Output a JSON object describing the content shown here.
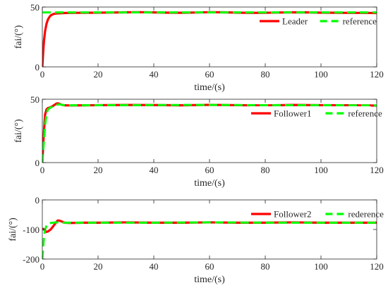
{
  "chart_data": [
    {
      "type": "line",
      "xlabel": "time/(s)",
      "ylabel": "fai/(°)",
      "xlim": [
        0,
        120
      ],
      "ylim": [
        0,
        50
      ],
      "xticks": [
        "0",
        "20",
        "40",
        "60",
        "80",
        "100",
        "120"
      ],
      "yticks": [
        "0",
        "50"
      ],
      "legend": "top-right",
      "grid": false,
      "series": [
        {
          "name": "Leader",
          "color": "#ff0000",
          "style": "solid",
          "x": [
            0,
            0.3,
            0.6,
            1,
            1.5,
            2,
            2.5,
            3,
            4,
            5,
            6,
            8,
            10,
            15,
            20,
            25,
            30,
            35,
            40,
            45,
            50,
            55,
            60,
            65,
            70,
            75,
            80,
            85,
            90,
            95,
            100,
            105,
            110,
            115,
            120
          ],
          "y": [
            0,
            12,
            22,
            30,
            36,
            39.5,
            41.5,
            43,
            44.2,
            44.6,
            44.8,
            45,
            45.1,
            45.2,
            45.3,
            45.4,
            45.6,
            45.7,
            45.5,
            45.3,
            45.2,
            45.4,
            45.7,
            45.6,
            45.3,
            45.1,
            45.2,
            45.4,
            45.6,
            45.5,
            45.3,
            45.2,
            45.1,
            45.1,
            45
          ]
        },
        {
          "name": "reference",
          "color": "#00ff00",
          "style": "dashed",
          "x": [
            0,
            120
          ],
          "y": [
            45.5,
            45.5
          ]
        }
      ]
    },
    {
      "type": "line",
      "xlabel": "time/(s)",
      "ylabel": "fai/(°)",
      "xlim": [
        0,
        120
      ],
      "ylim": [
        0,
        50
      ],
      "xticks": [
        "0",
        "20",
        "40",
        "60",
        "80",
        "100",
        "120"
      ],
      "yticks": [
        "0",
        "50"
      ],
      "legend": "top-right",
      "grid": false,
      "series": [
        {
          "name": "Follower1",
          "color": "#ff0000",
          "style": "solid",
          "x": [
            0,
            0.5,
            1,
            1.5,
            2,
            2.5,
            3,
            4,
            5,
            5.5,
            6,
            7,
            8,
            10,
            15,
            20,
            30,
            40,
            50,
            60,
            70,
            80,
            90,
            100,
            110,
            120
          ],
          "y": [
            0,
            22,
            38,
            42,
            43,
            43.3,
            43.8,
            45,
            46.5,
            46.8,
            46.5,
            45.6,
            45.2,
            45.1,
            45.2,
            45.3,
            45.5,
            45.4,
            45.2,
            45.6,
            45.3,
            45.1,
            45.5,
            45.3,
            45.2,
            45
          ]
        },
        {
          "name": "reference",
          "color": "#00ff00",
          "style": "dashed",
          "x": [
            0,
            0.5,
            1,
            1.5,
            2,
            3,
            4,
            5,
            6,
            7,
            8,
            10,
            20,
            40,
            60,
            80,
            100,
            120
          ],
          "y": [
            0,
            15,
            30,
            38,
            42,
            43.5,
            44.5,
            45.5,
            46,
            45.6,
            45.3,
            45.2,
            45.3,
            45.4,
            45.5,
            45.3,
            45.3,
            45.1
          ]
        }
      ]
    },
    {
      "type": "line",
      "xlabel": "time/(s)",
      "ylabel": "fai/(°)",
      "xlim": [
        0,
        120
      ],
      "ylim": [
        -200,
        0
      ],
      "xticks": [
        "0",
        "20",
        "40",
        "60",
        "80",
        "100",
        "120"
      ],
      "yticks": [
        "-200",
        "-100",
        "0"
      ],
      "legend": "top-right",
      "grid": false,
      "series": [
        {
          "name": "Follower2",
          "color": "#ff0000",
          "style": "solid",
          "x": [
            0,
            0.3,
            0.6,
            1,
            1.5,
            2,
            3,
            4,
            5,
            5.5,
            6,
            7,
            8,
            10,
            15,
            20,
            30,
            40,
            50,
            60,
            70,
            80,
            90,
            100,
            110,
            120
          ],
          "y": [
            -100,
            -98,
            -100,
            -105,
            -108,
            -107,
            -100,
            -88,
            -75,
            -70,
            -70,
            -73,
            -77,
            -78,
            -77,
            -77,
            -76,
            -77,
            -77,
            -76,
            -77,
            -77,
            -76,
            -77,
            -77,
            -77
          ]
        },
        {
          "name": "rederence",
          "color": "#00ff00",
          "style": "dashed",
          "x": [
            0,
            0.3,
            0.6,
            1,
            1.5,
            2,
            3,
            5,
            8,
            10,
            20,
            40,
            60,
            80,
            100,
            120
          ],
          "y": [
            -200,
            -160,
            -125,
            -100,
            -88,
            -82,
            -78,
            -76,
            -77,
            -77,
            -77,
            -77,
            -76,
            -77,
            -77,
            -77
          ]
        }
      ]
    }
  ]
}
